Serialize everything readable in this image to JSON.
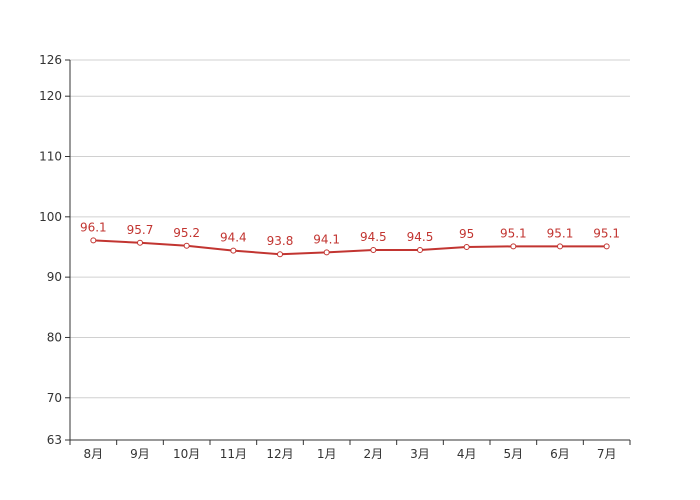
{
  "chart_data": {
    "type": "line",
    "categories": [
      "8月",
      "9月",
      "10月",
      "11月",
      "12月",
      "1月",
      "2月",
      "3月",
      "4月",
      "5月",
      "6月",
      "7月"
    ],
    "series": [
      {
        "values": [
          96.1,
          95.7,
          95.2,
          94.4,
          93.8,
          94.1,
          94.5,
          94.5,
          95,
          95.1,
          95.1,
          95.1
        ],
        "color": "#c23531"
      }
    ],
    "y_ticks": [
      63,
      70,
      80,
      90,
      100,
      110,
      120,
      126
    ],
    "ylim": [
      63,
      126
    ],
    "grid": true,
    "data_labels": true,
    "title": "",
    "xlabel": "",
    "ylabel": ""
  }
}
